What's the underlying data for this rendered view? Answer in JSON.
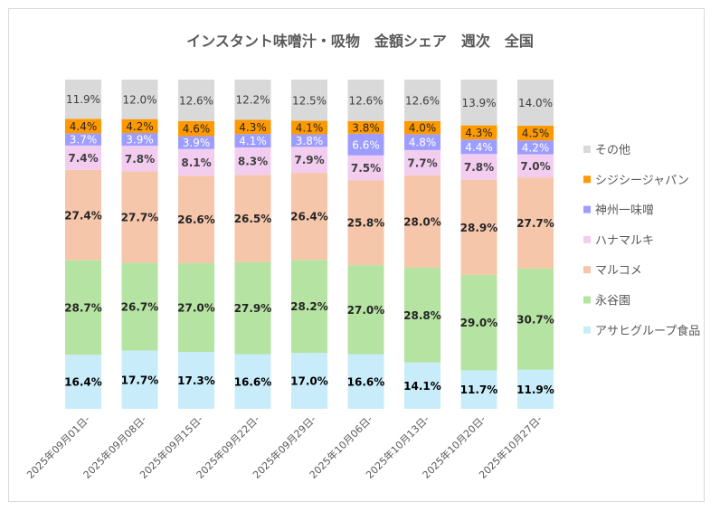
{
  "chart_data": {
    "type": "bar",
    "stacked": "100%",
    "title": "インスタント味噌汁・吸物　金額シェア　週次　全国",
    "categories": [
      "2025年09月01日-",
      "2025年09月08日-",
      "2025年09月15日-",
      "2025年09月22日-",
      "2025年09月29日-",
      "2025年10月06日-",
      "2025年10月13日-",
      "2025年10月20日-",
      "2025年10月27日-"
    ],
    "series": [
      {
        "name": "アサヒグループ食品",
        "color": "#c9ecfa",
        "values": [
          16.4,
          17.7,
          17.3,
          16.6,
          17.0,
          16.6,
          14.1,
          11.7,
          11.9
        ]
      },
      {
        "name": "永谷園",
        "color": "#b5e3a1",
        "values": [
          28.7,
          26.7,
          27.0,
          27.9,
          28.2,
          27.0,
          28.8,
          29.0,
          30.7
        ]
      },
      {
        "name": "マルコメ",
        "color": "#f5c6aa",
        "values": [
          27.4,
          27.7,
          26.6,
          26.5,
          26.4,
          25.8,
          28.0,
          28.9,
          27.7
        ]
      },
      {
        "name": "ハナマルキ",
        "color": "#f2cdf0",
        "values": [
          7.4,
          7.8,
          8.1,
          8.3,
          7.9,
          7.5,
          7.7,
          7.8,
          7.0
        ]
      },
      {
        "name": "神州一味噌",
        "color": "#9d9dff",
        "values": [
          3.7,
          3.9,
          3.9,
          4.1,
          3.8,
          6.6,
          4.8,
          4.4,
          4.2
        ]
      },
      {
        "name": "シジシージャパン",
        "color": "#ff9900",
        "values": [
          4.4,
          4.2,
          4.6,
          4.3,
          4.1,
          3.8,
          4.0,
          4.3,
          4.5
        ]
      },
      {
        "name": "その他",
        "color": "#d9d9d9",
        "values": [
          11.9,
          12.0,
          12.6,
          12.2,
          12.5,
          12.6,
          12.6,
          13.9,
          14.0
        ]
      }
    ],
    "legend_position": "right",
    "data_labels": true,
    "grid": false
  }
}
